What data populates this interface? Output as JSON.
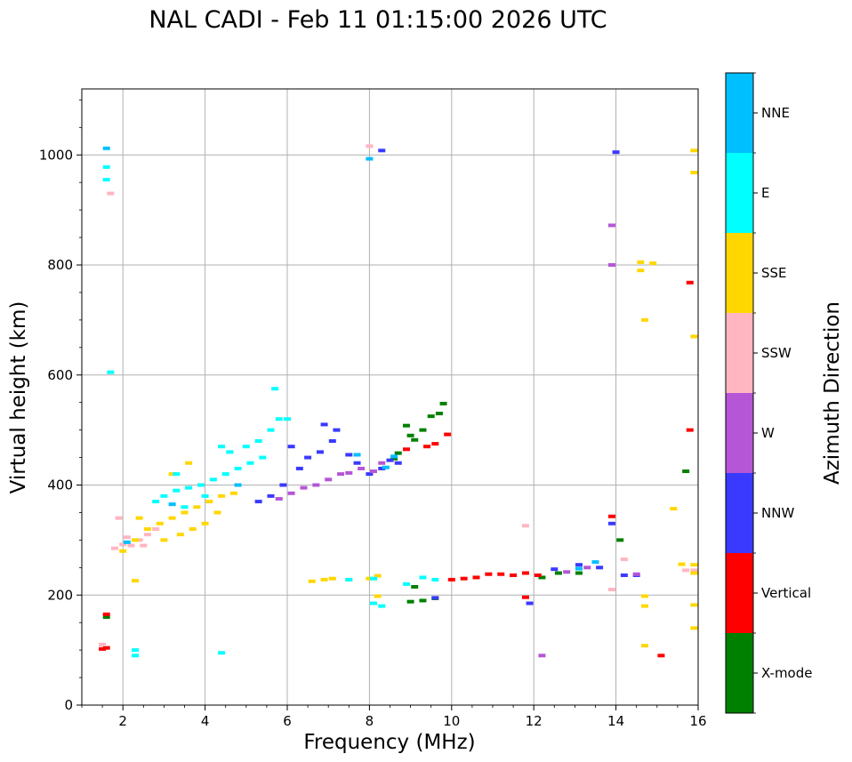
{
  "colors": {
    "x_mode": "#008000",
    "vertical": "#ff0000",
    "nnw": "#3a3aff",
    "w": "#b556d6",
    "ssw": "#ffb6c1",
    "sse": "#ffd700",
    "e": "#00ffff",
    "nne": "#00bfff",
    "grid": "#b0b0b0"
  },
  "chart_data": {
    "type": "scatter",
    "title": "NAL CADI - Feb 11 01:15:00 2026 UTC",
    "xlabel": "Frequency (MHz)",
    "ylabel": "Virtual height (km)",
    "xlim": [
      1,
      16
    ],
    "ylim": [
      0,
      1120
    ],
    "xticks": [
      2,
      4,
      6,
      8,
      10,
      12,
      14,
      16
    ],
    "yticks": [
      0,
      200,
      400,
      600,
      800,
      1000
    ],
    "grid": true,
    "colorbar": {
      "label": "Azimuth Direction",
      "categories": [
        "X-mode",
        "Vertical",
        "NNW",
        "W",
        "SSW",
        "SSE",
        "E",
        "NNE"
      ]
    },
    "series": [
      {
        "name": "X-mode",
        "color": "x_mode",
        "points": [
          [
            8.9,
            508
          ],
          [
            9.0,
            490
          ],
          [
            9.1,
            482
          ],
          [
            9.3,
            500
          ],
          [
            9.5,
            525
          ],
          [
            9.7,
            530
          ],
          [
            9.8,
            548
          ],
          [
            8.7,
            458
          ],
          [
            8.6,
            448
          ],
          [
            9.0,
            188
          ],
          [
            9.3,
            190
          ],
          [
            9.6,
            194
          ],
          [
            9.1,
            215
          ],
          [
            12.2,
            232
          ],
          [
            12.6,
            240
          ],
          [
            13.1,
            240
          ],
          [
            14.1,
            300
          ],
          [
            15.7,
            425
          ],
          [
            1.6,
            160
          ]
        ]
      },
      {
        "name": "Vertical",
        "color": "vertical",
        "points": [
          [
            10.0,
            228
          ],
          [
            10.3,
            230
          ],
          [
            10.6,
            232
          ],
          [
            10.9,
            238
          ],
          [
            11.2,
            238
          ],
          [
            11.5,
            236
          ],
          [
            11.8,
            240
          ],
          [
            12.1,
            236
          ],
          [
            9.4,
            470
          ],
          [
            9.6,
            475
          ],
          [
            9.9,
            492
          ],
          [
            8.9,
            465
          ],
          [
            1.5,
            102
          ],
          [
            1.6,
            104
          ],
          [
            1.6,
            165
          ],
          [
            15.1,
            90
          ],
          [
            15.8,
            768
          ],
          [
            15.8,
            500
          ],
          [
            13.9,
            343
          ],
          [
            11.8,
            196
          ]
        ]
      },
      {
        "name": "NNW",
        "color": "nnw",
        "points": [
          [
            5.9,
            400
          ],
          [
            6.3,
            430
          ],
          [
            6.5,
            450
          ],
          [
            6.8,
            460
          ],
          [
            7.1,
            480
          ],
          [
            7.2,
            500
          ],
          [
            7.7,
            440
          ],
          [
            8.0,
            420
          ],
          [
            8.3,
            430
          ],
          [
            8.5,
            445
          ],
          [
            8.7,
            440
          ],
          [
            6.9,
            510
          ],
          [
            7.5,
            455
          ],
          [
            6.1,
            470
          ],
          [
            5.3,
            370
          ],
          [
            5.6,
            380
          ],
          [
            9.6,
            195
          ],
          [
            14.0,
            1005
          ],
          [
            8.3,
            1008
          ],
          [
            11.9,
            185
          ],
          [
            13.9,
            330
          ],
          [
            14.2,
            236
          ],
          [
            14.5,
            236
          ],
          [
            12.5,
            247
          ],
          [
            13.1,
            255
          ],
          [
            13.6,
            250
          ]
        ]
      },
      {
        "name": "W",
        "color": "w",
        "points": [
          [
            6.4,
            395
          ],
          [
            6.7,
            400
          ],
          [
            7.0,
            410
          ],
          [
            7.3,
            420
          ],
          [
            7.5,
            422
          ],
          [
            7.8,
            430
          ],
          [
            8.1,
            425
          ],
          [
            8.3,
            440
          ],
          [
            5.8,
            375
          ],
          [
            6.1,
            385
          ],
          [
            13.9,
            800
          ],
          [
            13.9,
            872
          ],
          [
            12.2,
            90
          ],
          [
            14.5,
            238
          ],
          [
            13.3,
            250
          ],
          [
            12.8,
            242
          ]
        ]
      },
      {
        "name": "SSW",
        "color": "ssw",
        "points": [
          [
            1.8,
            285
          ],
          [
            2.0,
            292
          ],
          [
            2.2,
            290
          ],
          [
            2.4,
            300
          ],
          [
            2.6,
            310
          ],
          [
            2.8,
            320
          ],
          [
            1.9,
            340
          ],
          [
            2.1,
            305
          ],
          [
            2.5,
            290
          ],
          [
            1.7,
            930
          ],
          [
            8.0,
            1016
          ],
          [
            11.8,
            326
          ],
          [
            13.9,
            210
          ],
          [
            14.2,
            265
          ],
          [
            15.7,
            245
          ],
          [
            15.9,
            245
          ],
          [
            1.5,
            110
          ]
        ]
      },
      {
        "name": "SSE",
        "color": "sse",
        "points": [
          [
            2.0,
            280
          ],
          [
            2.3,
            300
          ],
          [
            2.6,
            320
          ],
          [
            2.9,
            330
          ],
          [
            3.2,
            340
          ],
          [
            3.5,
            350
          ],
          [
            3.8,
            360
          ],
          [
            4.1,
            370
          ],
          [
            4.4,
            380
          ],
          [
            4.7,
            385
          ],
          [
            3.0,
            300
          ],
          [
            3.4,
            310
          ],
          [
            3.7,
            320
          ],
          [
            4.0,
            330
          ],
          [
            4.3,
            350
          ],
          [
            2.4,
            340
          ],
          [
            3.6,
            440
          ],
          [
            3.2,
            420
          ],
          [
            6.6,
            225
          ],
          [
            6.9,
            228
          ],
          [
            7.1,
            230
          ],
          [
            7.5,
            228
          ],
          [
            8.0,
            230
          ],
          [
            8.2,
            235
          ],
          [
            14.6,
            805
          ],
          [
            14.9,
            803
          ],
          [
            14.6,
            790
          ],
          [
            14.7,
            700
          ],
          [
            15.9,
            1008
          ],
          [
            15.9,
            968
          ],
          [
            15.9,
            670
          ],
          [
            15.4,
            357
          ],
          [
            15.6,
            256
          ],
          [
            15.9,
            255
          ],
          [
            15.9,
            240
          ],
          [
            14.7,
            198
          ],
          [
            14.7,
            180
          ],
          [
            14.7,
            108
          ],
          [
            15.9,
            140
          ],
          [
            15.9,
            182
          ],
          [
            2.3,
            226
          ],
          [
            8.2,
            198
          ]
        ]
      },
      {
        "name": "E",
        "color": "e",
        "points": [
          [
            3.0,
            380
          ],
          [
            3.3,
            390
          ],
          [
            3.6,
            395
          ],
          [
            3.9,
            400
          ],
          [
            4.2,
            410
          ],
          [
            4.5,
            420
          ],
          [
            4.8,
            430
          ],
          [
            5.1,
            440
          ],
          [
            5.4,
            450
          ],
          [
            3.5,
            360
          ],
          [
            4.0,
            380
          ],
          [
            4.6,
            460
          ],
          [
            5.0,
            470
          ],
          [
            5.3,
            480
          ],
          [
            5.6,
            500
          ],
          [
            5.8,
            520
          ],
          [
            6.0,
            520
          ],
          [
            2.8,
            370
          ],
          [
            3.3,
            420
          ],
          [
            4.4,
            470
          ],
          [
            5.7,
            575
          ],
          [
            1.6,
            978
          ],
          [
            1.6,
            955
          ],
          [
            1.7,
            605
          ],
          [
            2.3,
            100
          ],
          [
            2.3,
            90
          ],
          [
            4.4,
            95
          ],
          [
            8.1,
            185
          ],
          [
            8.3,
            180
          ],
          [
            8.9,
            220
          ],
          [
            9.3,
            232
          ],
          [
            9.6,
            228
          ],
          [
            8.1,
            230
          ],
          [
            7.5,
            228
          ]
        ]
      },
      {
        "name": "NNE",
        "color": "nne",
        "points": [
          [
            8.4,
            432
          ],
          [
            8.6,
            452
          ],
          [
            2.1,
            296
          ],
          [
            3.2,
            365
          ],
          [
            4.8,
            400
          ],
          [
            13.5,
            260
          ],
          [
            13.1,
            248
          ],
          [
            1.6,
            1012
          ],
          [
            8.0,
            993
          ],
          [
            7.7,
            455
          ]
        ]
      }
    ]
  }
}
